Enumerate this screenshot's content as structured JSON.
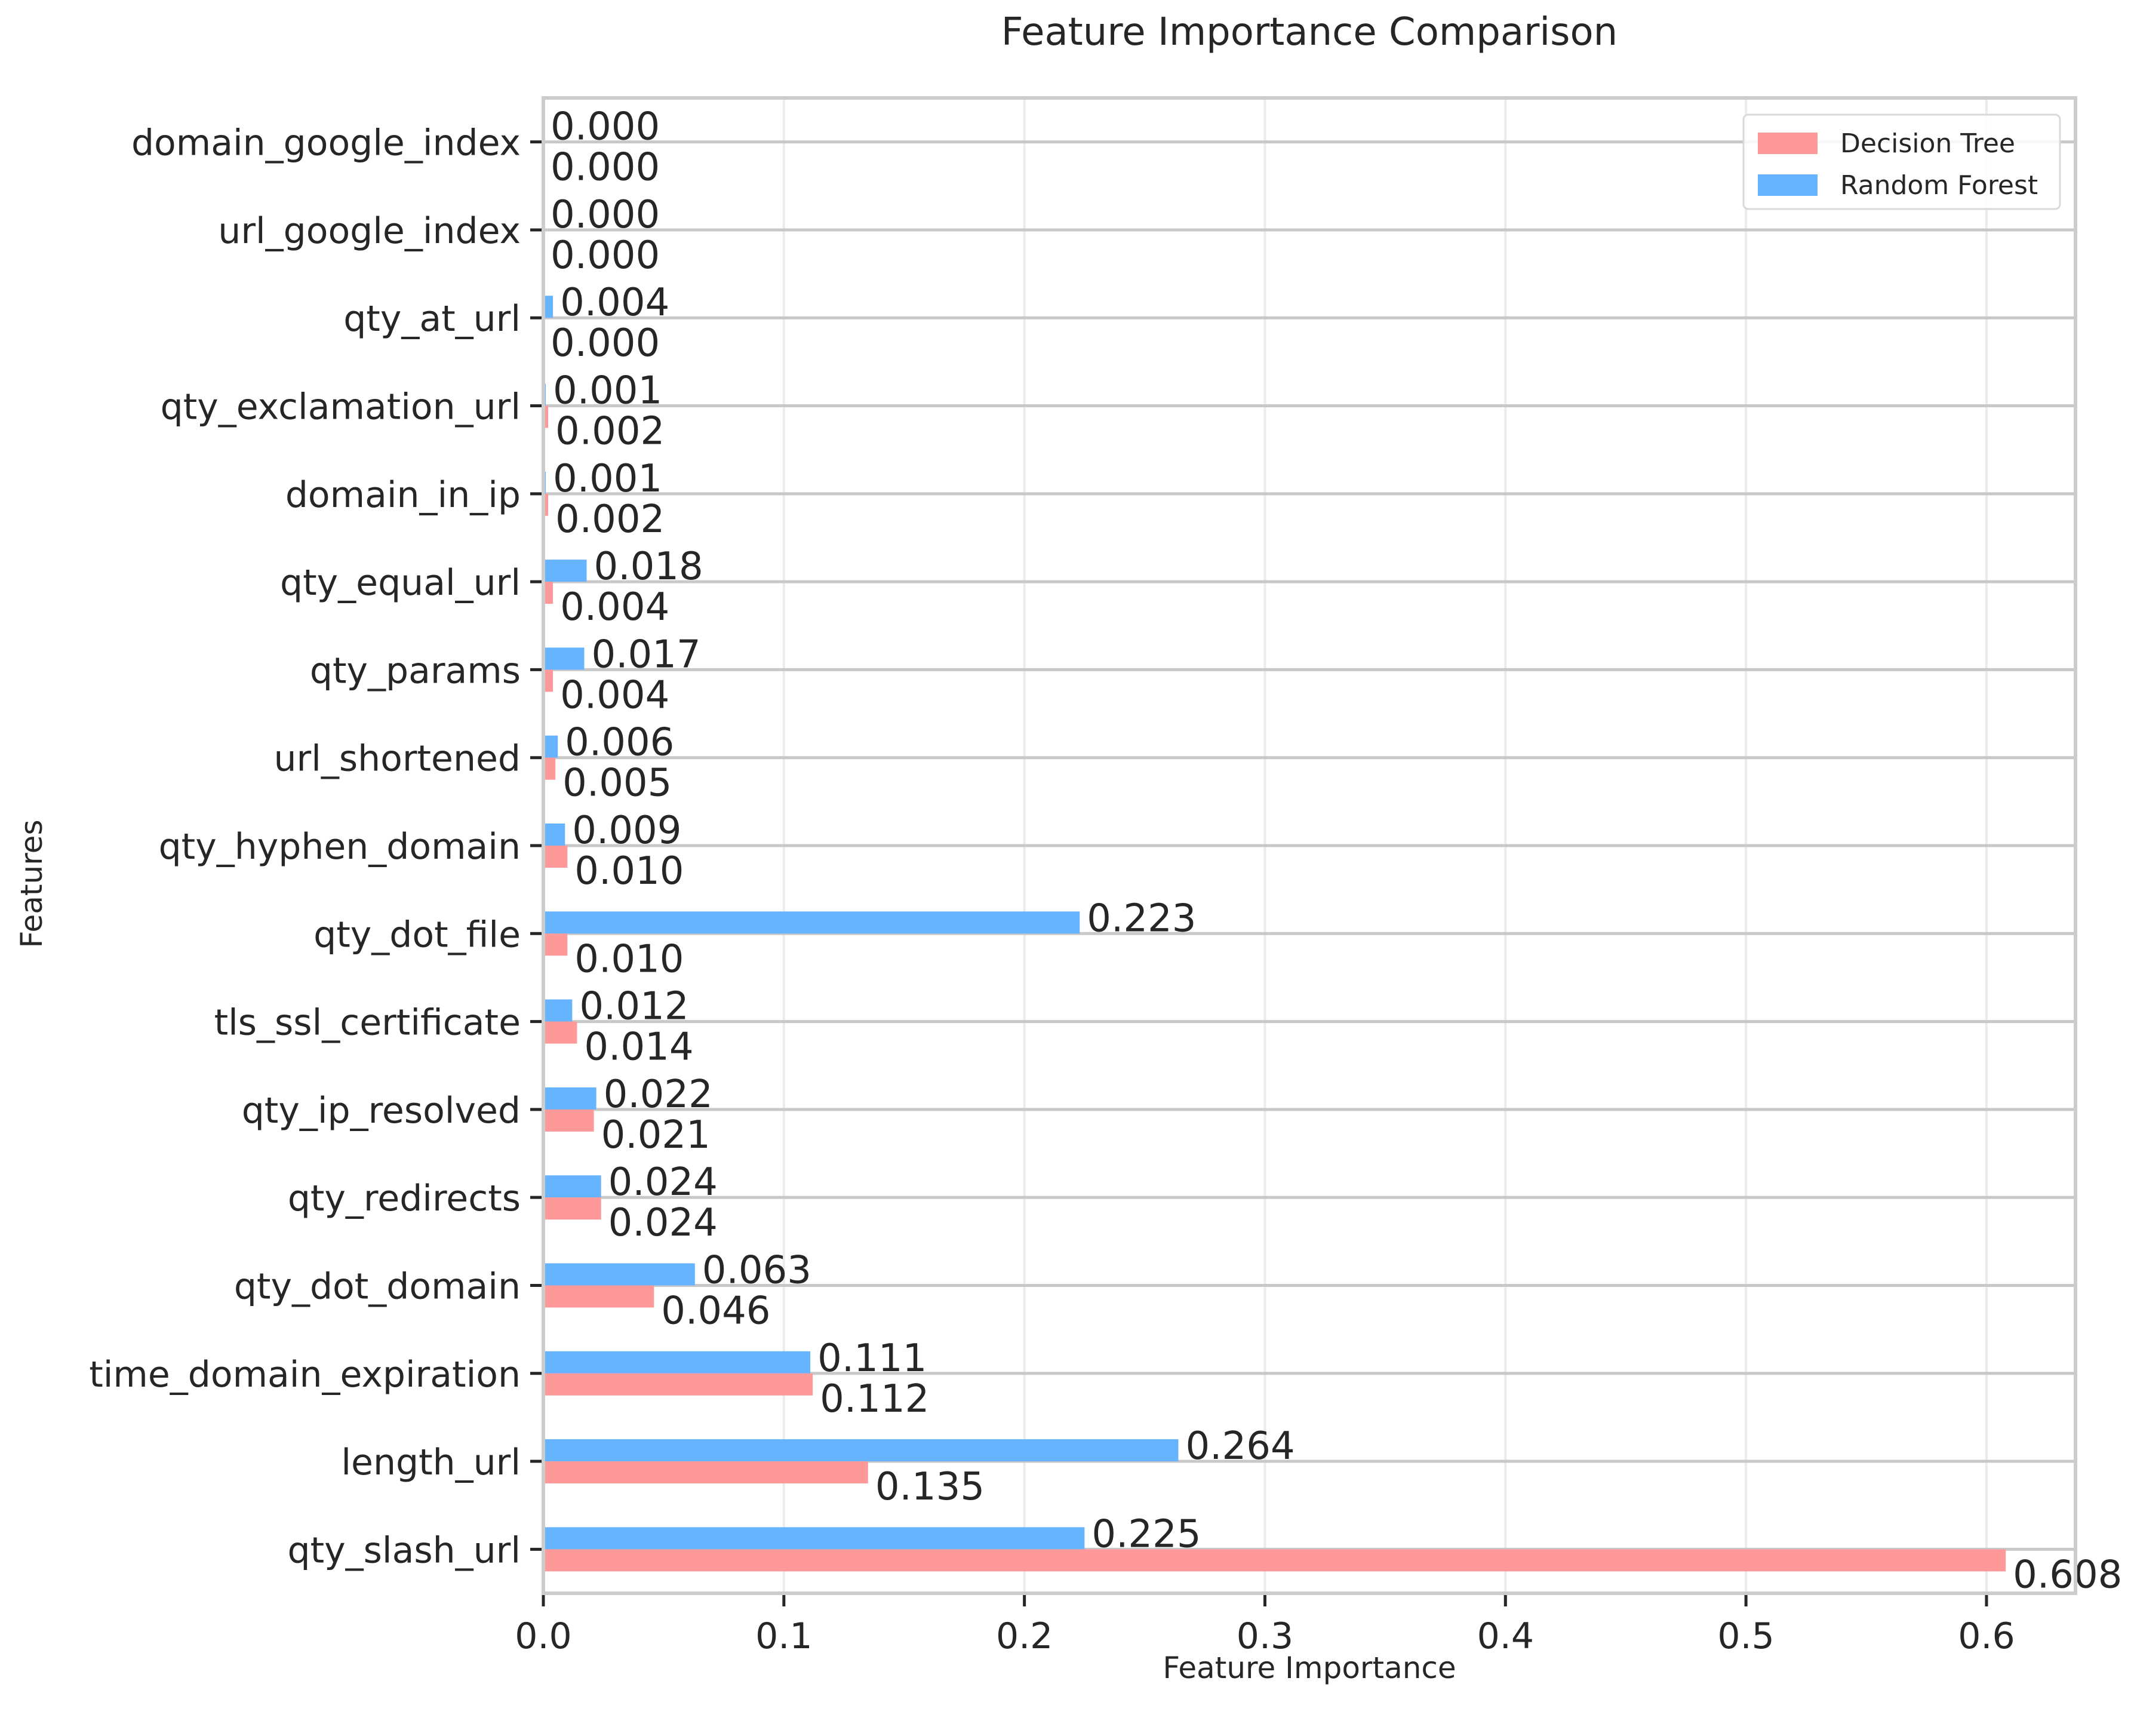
{
  "chart_data": {
    "type": "bar",
    "orientation": "horizontal",
    "title": "Feature Importance Comparison",
    "xlabel": "Feature Importance",
    "ylabel": "Features",
    "xlim": [
      0,
      0.637
    ],
    "xticks": [
      "0.0",
      "0.1",
      "0.2",
      "0.3",
      "0.4",
      "0.5",
      "0.6"
    ],
    "grid": true,
    "legend_position": "top-right",
    "categories": [
      "domain_google_index",
      "url_google_index",
      "qty_at_url",
      "qty_exclamation_url",
      "domain_in_ip",
      "qty_equal_url",
      "qty_params",
      "url_shortened",
      "qty_hyphen_domain",
      "qty_dot_file",
      "tls_ssl_certificate",
      "qty_ip_resolved",
      "qty_redirects",
      "qty_dot_domain",
      "time_domain_expiration",
      "length_url",
      "qty_slash_url"
    ],
    "series": [
      {
        "name": "Decision Tree",
        "color": "#ff9999",
        "values": [
          0.0,
          0.0,
          0.0,
          0.002,
          0.002,
          0.004,
          0.004,
          0.005,
          0.01,
          0.01,
          0.014,
          0.021,
          0.024,
          0.046,
          0.112,
          0.135,
          0.608
        ],
        "labels": [
          "0.000",
          "0.000",
          "0.000",
          "0.002",
          "0.002",
          "0.004",
          "0.004",
          "0.005",
          "0.010",
          "0.010",
          "0.014",
          "0.021",
          "0.024",
          "0.046",
          "0.112",
          "0.135",
          "0.608"
        ]
      },
      {
        "name": "Random Forest",
        "color": "#66b3ff",
        "values": [
          0.0,
          0.0,
          0.004,
          0.001,
          0.001,
          0.018,
          0.017,
          0.006,
          0.009,
          0.223,
          0.012,
          0.022,
          0.024,
          0.063,
          0.111,
          0.264,
          0.225
        ],
        "labels": [
          "0.000",
          "0.000",
          "0.004",
          "0.001",
          "0.001",
          "0.018",
          "0.017",
          "0.006",
          "0.009",
          "0.223",
          "0.012",
          "0.022",
          "0.024",
          "0.063",
          "0.111",
          "0.264",
          "0.225"
        ]
      }
    ]
  }
}
